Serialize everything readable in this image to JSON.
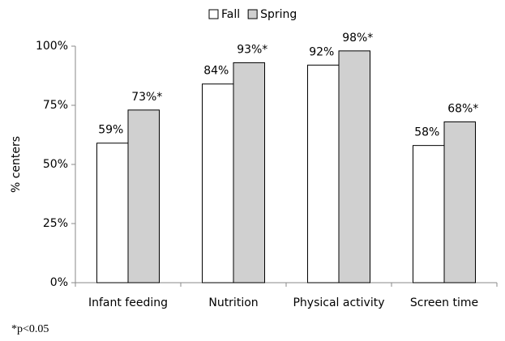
{
  "chart_data": {
    "type": "bar",
    "legend_position": "top",
    "y_axis_label": "% centers",
    "categories": [
      "Infant feeding",
      "Nutrition",
      "Physical activity",
      "Screen time"
    ],
    "series": [
      {
        "name": "Fall",
        "color": "#ffffff",
        "values": [
          59,
          84,
          92,
          58
        ],
        "value_labels": [
          "59%",
          "84%",
          "92%",
          "58%"
        ]
      },
      {
        "name": "Spring",
        "color": "#d0d0d0",
        "values": [
          73,
          93,
          98,
          68
        ],
        "value_labels": [
          "73%*",
          "93%*",
          "98%*",
          "68%*"
        ]
      }
    ],
    "ylim": [
      0,
      100
    ],
    "yticks": [
      {
        "value": 0,
        "label": "0%"
      },
      {
        "value": 25,
        "label": "25%"
      },
      {
        "value": 50,
        "label": "50%"
      },
      {
        "value": 75,
        "label": "75%"
      },
      {
        "value": 100,
        "label": "100%"
      }
    ],
    "grid": false,
    "footnote": "*p<0.05"
  }
}
